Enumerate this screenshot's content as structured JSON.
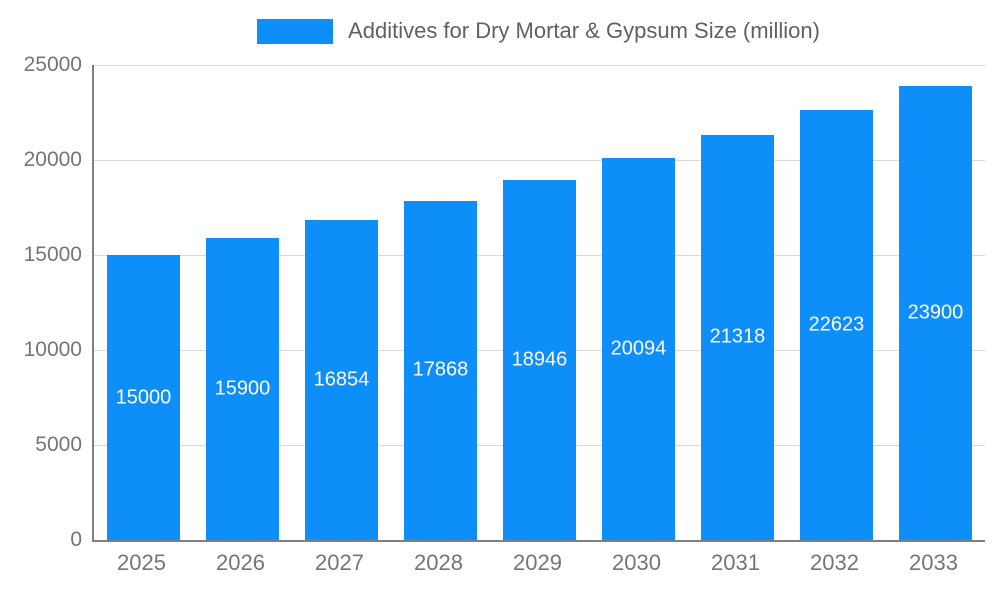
{
  "chart_data": {
    "type": "bar",
    "title": "Additives for Dry Mortar & Gypsum Size (million)",
    "categories": [
      "2025",
      "2026",
      "2027",
      "2028",
      "2029",
      "2030",
      "2031",
      "2032",
      "2033"
    ],
    "values": [
      15000,
      15900,
      16854,
      17868,
      18946,
      20094,
      21318,
      22623,
      23900
    ],
    "series": [
      {
        "name": "Additives for Dry Mortar & Gypsum Size (million)",
        "values": [
          15000,
          15900,
          16854,
          17868,
          18946,
          20094,
          21318,
          22623,
          23900
        ]
      }
    ],
    "xlabel": "",
    "ylabel": "",
    "ylim": [
      0,
      25000
    ],
    "yticks": [
      0,
      5000,
      10000,
      15000,
      20000,
      25000
    ],
    "grid": true,
    "legend_position": "top-center",
    "value_labels": "inside-center-white",
    "colors": {
      "bar_color": "#0d8ef9",
      "value_label_color": "#ffffff",
      "axis_label_color": "#757575",
      "gridline_color": "#d8d8d8",
      "axis_line_color": "#7f7f7f",
      "title_color": "#616161",
      "background": "#ffffff"
    }
  }
}
